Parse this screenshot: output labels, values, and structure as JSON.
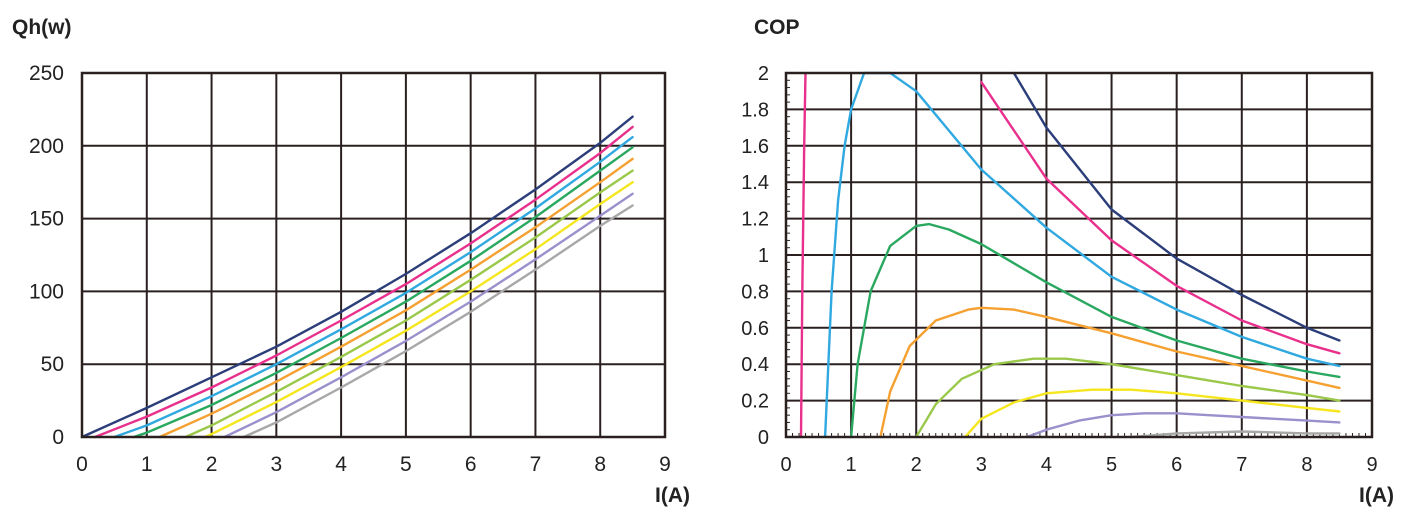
{
  "chart_data": [
    {
      "type": "line",
      "title": "Qh(w)",
      "xlabel": "I(A)",
      "ylabel": "Qh(w)",
      "xlim": [
        0,
        9
      ],
      "ylim": [
        0,
        250
      ],
      "x_ticks": [
        0,
        1,
        2,
        3,
        4,
        5,
        6,
        7,
        8,
        9
      ],
      "y_ticks": [
        0,
        50,
        100,
        150,
        200,
        250
      ],
      "grid": true,
      "series": [
        {
          "name": "navy",
          "color": "#2c3e7a",
          "x": [
            0,
            1,
            2,
            3,
            4,
            5,
            6,
            7,
            8,
            8.5
          ],
          "y": [
            0,
            20,
            41,
            62,
            86,
            112,
            140,
            170,
            202,
            220
          ]
        },
        {
          "name": "magenta",
          "color": "#e8308c",
          "x": [
            0.2,
            1,
            2,
            3,
            4,
            5,
            6,
            7,
            8,
            8.5
          ],
          "y": [
            0,
            14,
            34,
            56,
            80,
            105,
            133,
            163,
            195,
            213
          ]
        },
        {
          "name": "sky-blue",
          "color": "#30a8e0",
          "x": [
            0.5,
            1,
            2,
            3,
            4,
            5,
            6,
            7,
            8,
            8.5
          ],
          "y": [
            0,
            8,
            28,
            50,
            74,
            99,
            127,
            157,
            189,
            206
          ]
        },
        {
          "name": "green",
          "color": "#2aa860",
          "x": [
            0.8,
            1,
            2,
            3,
            4,
            5,
            6,
            7,
            8,
            8.5
          ],
          "y": [
            0,
            3,
            22,
            44,
            68,
            93,
            121,
            151,
            183,
            199
          ]
        },
        {
          "name": "orange",
          "color": "#f5a030",
          "x": [
            1.2,
            2,
            3,
            4,
            5,
            6,
            7,
            8,
            8.5
          ],
          "y": [
            0,
            16,
            38,
            62,
            87,
            115,
            144,
            175,
            191
          ]
        },
        {
          "name": "light-green",
          "color": "#9ac84a",
          "x": [
            1.6,
            2,
            3,
            4,
            5,
            6,
            7,
            8,
            8.5
          ],
          "y": [
            0,
            8,
            31,
            55,
            80,
            108,
            137,
            168,
            183
          ]
        },
        {
          "name": "yellow",
          "color": "#f5e61e",
          "x": [
            1.9,
            2,
            3,
            4,
            5,
            6,
            7,
            8,
            8.5
          ],
          "y": [
            0,
            2,
            24,
            48,
            73,
            100,
            129,
            160,
            175
          ]
        },
        {
          "name": "lavender",
          "color": "#9a90cc",
          "x": [
            2.2,
            3,
            4,
            5,
            6,
            7,
            8,
            8.5
          ],
          "y": [
            0,
            17,
            41,
            66,
            93,
            122,
            152,
            167
          ]
        },
        {
          "name": "gray",
          "color": "#a8a8a8",
          "x": [
            2.5,
            3,
            4,
            5,
            6,
            7,
            8,
            8.5
          ],
          "y": [
            0,
            10,
            34,
            59,
            86,
            115,
            145,
            159
          ]
        }
      ]
    },
    {
      "type": "line",
      "title": "COP",
      "xlabel": "I(A)",
      "ylabel": "COP",
      "xlim": [
        0,
        9
      ],
      "ylim": [
        0,
        2
      ],
      "x_ticks": [
        0,
        1,
        2,
        3,
        4,
        5,
        6,
        7,
        8,
        9
      ],
      "y_ticks": [
        0,
        0.2,
        0.4,
        0.6,
        0.8,
        1,
        1.2,
        1.4,
        1.6,
        1.8,
        2
      ],
      "y_tick_labels": [
        "0",
        "0.2",
        "0.4",
        "0.6",
        "0.8",
        "1",
        "1.2",
        "1.4",
        "1.6",
        "1.8",
        "2"
      ],
      "grid": true,
      "series": [
        {
          "name": "navy",
          "color": "#2c3e7a",
          "x": [
            3.5,
            4,
            5,
            6,
            7,
            8,
            8.5
          ],
          "y": [
            2.0,
            1.7,
            1.25,
            0.98,
            0.78,
            0.6,
            0.53
          ]
        },
        {
          "name": "magenta-right",
          "color": "#e8308c",
          "x": [
            3.0,
            4,
            5,
            6,
            7,
            8,
            8.5
          ],
          "y": [
            1.95,
            1.42,
            1.08,
            0.83,
            0.64,
            0.51,
            0.46
          ]
        },
        {
          "name": "magenta-left",
          "color": "#e8308c",
          "x": [
            0.23,
            0.25,
            0.28,
            0.3
          ],
          "y": [
            0,
            0.8,
            1.6,
            2.0
          ]
        },
        {
          "name": "sky-blue",
          "color": "#30a8e0",
          "x": [
            0.6,
            0.7,
            0.8,
            0.9,
            1.0,
            1.2,
            1.6,
            2.0,
            3,
            4,
            5,
            6,
            7,
            8,
            8.5
          ],
          "y": [
            0,
            0.8,
            1.3,
            1.6,
            1.8,
            2.0,
            2.08,
            1.9,
            1.47,
            1.15,
            0.88,
            0.7,
            0.55,
            0.43,
            0.39
          ]
        },
        {
          "name": "green",
          "color": "#2aa860",
          "x": [
            1.0,
            1.1,
            1.3,
            1.6,
            2.0,
            2.2,
            2.5,
            3,
            4,
            5,
            6,
            7,
            8,
            8.5
          ],
          "y": [
            0,
            0.4,
            0.8,
            1.05,
            1.16,
            1.17,
            1.14,
            1.06,
            0.85,
            0.66,
            0.53,
            0.43,
            0.36,
            0.33
          ]
        },
        {
          "name": "orange",
          "color": "#f5a030",
          "x": [
            1.45,
            1.6,
            1.9,
            2.3,
            2.8,
            3,
            3.5,
            4,
            5,
            6,
            7,
            8,
            8.5
          ],
          "y": [
            0,
            0.25,
            0.5,
            0.64,
            0.7,
            0.71,
            0.7,
            0.66,
            0.57,
            0.47,
            0.39,
            0.31,
            0.27
          ]
        },
        {
          "name": "light-green",
          "color": "#9ac84a",
          "x": [
            2.0,
            2.3,
            2.7,
            3.2,
            3.8,
            4.3,
            5,
            6,
            7,
            8,
            8.5
          ],
          "y": [
            0,
            0.18,
            0.32,
            0.4,
            0.43,
            0.43,
            0.4,
            0.34,
            0.28,
            0.23,
            0.2
          ]
        },
        {
          "name": "yellow",
          "color": "#f5e61e",
          "x": [
            2.75,
            3.0,
            3.5,
            4.0,
            4.7,
            5.3,
            6,
            7,
            8,
            8.5
          ],
          "y": [
            0,
            0.1,
            0.19,
            0.24,
            0.26,
            0.26,
            0.24,
            0.2,
            0.16,
            0.14
          ]
        },
        {
          "name": "lavender",
          "color": "#9a90cc",
          "x": [
            3.7,
            4.0,
            4.5,
            5.0,
            5.5,
            6.0,
            6.5,
            7,
            8,
            8.5
          ],
          "y": [
            0,
            0.04,
            0.09,
            0.12,
            0.13,
            0.13,
            0.12,
            0.11,
            0.09,
            0.08
          ]
        },
        {
          "name": "gray",
          "color": "#a8a8a8",
          "x": [
            5.3,
            6.0,
            7.0,
            8.0,
            8.5
          ],
          "y": [
            0,
            0.02,
            0.03,
            0.02,
            0.02
          ]
        }
      ]
    }
  ]
}
